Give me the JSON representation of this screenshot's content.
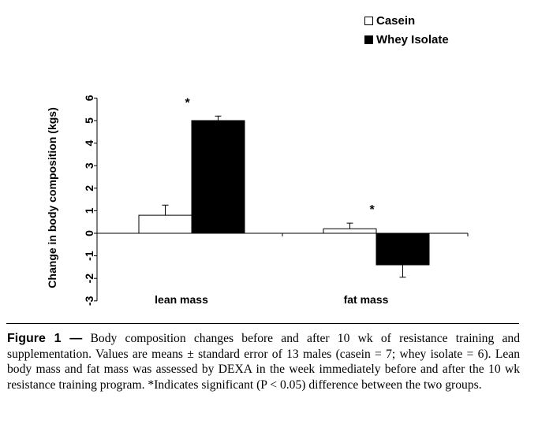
{
  "chart_data": {
    "type": "bar",
    "ylabel": "Change in body composition (kgs)",
    "xlabel": "",
    "ylim": [
      -3,
      6
    ],
    "yticks": [
      "6",
      "5",
      "4",
      "3",
      "2",
      "1",
      "0",
      "-1",
      "-2",
      "-3"
    ],
    "categories": [
      "lean mass",
      "fat mass"
    ],
    "series": [
      {
        "name": "Casein",
        "fill": "#ffffff",
        "values": [
          0.8,
          0.2
        ],
        "errors": [
          0.45,
          0.25
        ]
      },
      {
        "name": "Whey Isolate",
        "fill": "#000000",
        "values": [
          5.0,
          -1.4
        ],
        "errors": [
          0.2,
          0.55
        ]
      }
    ],
    "annotations": [
      "*",
      "*"
    ],
    "legend_position": "top-right"
  },
  "caption": {
    "label": "Figure 1 —",
    "text": "Body composition changes before and after 10 wk of resistance training and supplementation. Values are means ± standard error of 13 males (casein = 7; whey isolate = 6). Lean body mass and fat mass was assessed by DEXA in the week immediately before and after the 10 wk resistance training program. *Indicates significant (P < 0.05) difference between the two groups."
  }
}
